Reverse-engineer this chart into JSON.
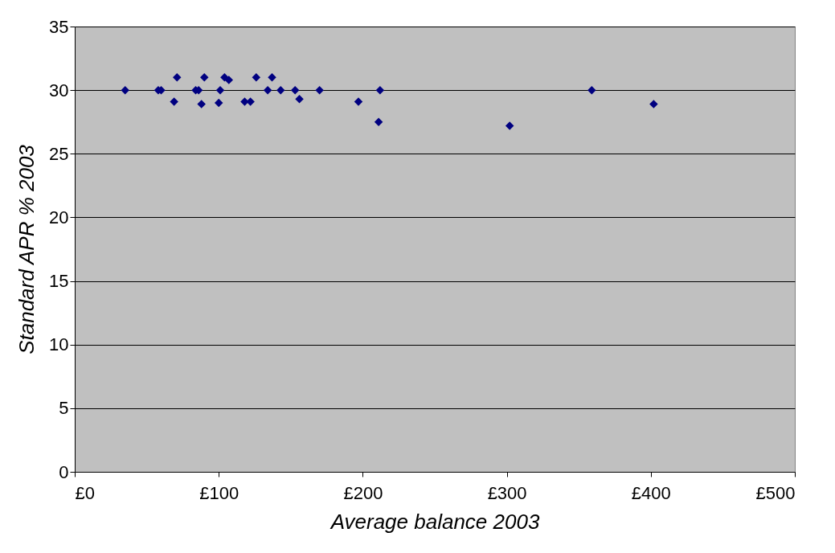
{
  "chart_data": {
    "type": "scatter",
    "xlabel": "Average balance 2003",
    "ylabel": "Standard APR % 2003",
    "x": [
      35,
      58,
      60,
      71,
      69,
      84,
      86,
      90,
      88,
      100,
      101,
      104,
      107,
      118,
      122,
      126,
      134,
      137,
      143,
      153,
      156,
      170,
      197,
      212,
      211,
      302,
      359,
      402
    ],
    "series": [
      {
        "color": "#000080",
        "values": [
          30,
          30,
          30,
          31,
          29.1,
          30,
          30,
          31,
          28.9,
          29,
          30,
          31,
          30.8,
          29.1,
          29.1,
          31,
          30,
          31,
          30,
          30,
          29.3,
          30,
          29.1,
          30,
          27.5,
          27.2,
          30,
          28.9
        ]
      }
    ],
    "xlim": [
      0,
      500
    ],
    "xticks": [
      {
        "value": 0,
        "label": "£0"
      },
      {
        "value": 100,
        "label": "£100"
      },
      {
        "value": 200,
        "label": "£200"
      },
      {
        "value": 300,
        "label": "£300"
      },
      {
        "value": 400,
        "label": "£400"
      },
      {
        "value": 500,
        "label": "£500"
      }
    ],
    "ylim": [
      0,
      35
    ],
    "yticks": [
      0,
      5,
      10,
      15,
      20,
      25,
      30,
      35
    ],
    "grid": "y",
    "marker": "diamond",
    "legend": false
  }
}
